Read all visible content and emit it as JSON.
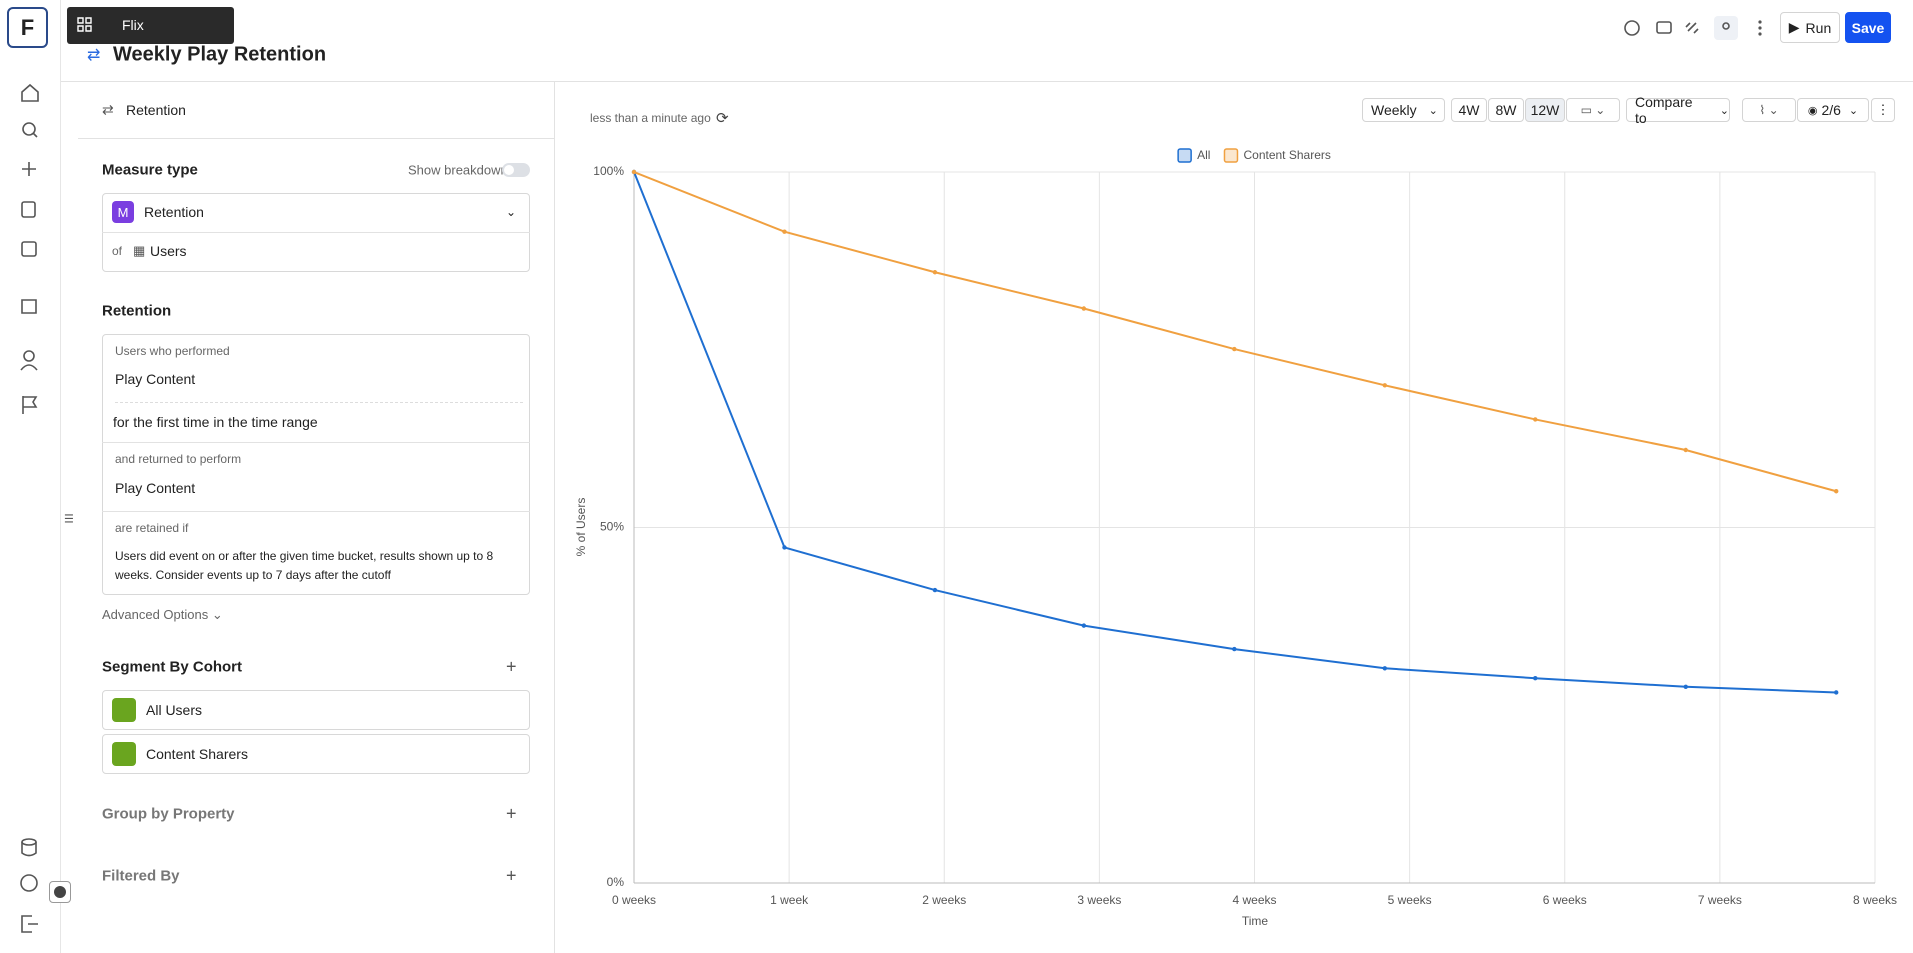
{
  "app": {
    "logo": "F",
    "workspace": "Flix"
  },
  "header": {
    "title": "Weekly Play Retention"
  },
  "toolbar": {
    "run": "Run",
    "save": "Save"
  },
  "panel": {
    "tab": "Retention",
    "measure_type": "Measure type",
    "show_breakdown": "Show breakdown",
    "measure_badge": "M",
    "measure": "Retention",
    "of": "of",
    "entity": "Users",
    "retention_heading": "Retention",
    "users_who_performed": "Users who performed",
    "event1": "Play Content",
    "first_time": "for the first time in the time range",
    "returned": "and returned to perform",
    "event2": "Play Content",
    "retained_if": "are retained if",
    "retained_desc": "Users did event on or after the given time bucket, results shown up to 8 weeks. Consider events up to 7 days after the cutoff",
    "advanced": "Advanced Options",
    "segment_heading": "Segment By Cohort",
    "cohorts": [
      "All Users",
      "Content Sharers"
    ],
    "group_by": "Group by Property",
    "filtered_by": "Filtered By"
  },
  "controls": {
    "updated": "less than a minute ago",
    "interval": "Weekly",
    "ranges": [
      "4W",
      "8W",
      "12W"
    ],
    "compare": "Compare to",
    "visible": "2/6"
  },
  "chart_data": {
    "type": "line",
    "x_label": "Time",
    "y_label": "% of Users",
    "x": [
      0,
      0.97,
      1.94,
      2.9,
      3.87,
      4.84,
      5.81,
      6.78,
      7.75
    ],
    "series": [
      {
        "name": "All",
        "color": "#1f6fd1",
        "values": [
          100,
          47.2,
          41.2,
          36.2,
          32.9,
          30.2,
          28.8,
          27.6,
          26.8
        ]
      },
      {
        "name": "Content Sharers",
        "color": "#f0a040",
        "values": [
          100,
          91.6,
          85.9,
          80.8,
          75.1,
          70.0,
          65.2,
          60.9,
          55.1
        ]
      }
    ],
    "xlim": [
      0,
      8
    ],
    "xticks": [
      {
        "value": 0,
        "label": "0 weeks"
      },
      {
        "value": 1,
        "label": "1 week"
      },
      {
        "value": 2,
        "label": "2 weeks"
      },
      {
        "value": 3,
        "label": "3 weeks"
      },
      {
        "value": 4,
        "label": "4 weeks"
      },
      {
        "value": 5,
        "label": "5 weeks"
      },
      {
        "value": 6,
        "label": "6 weeks"
      },
      {
        "value": 7,
        "label": "7 weeks"
      },
      {
        "value": 8,
        "label": "8 weeks"
      }
    ],
    "ylim": [
      0,
      100
    ],
    "yticks": [
      {
        "value": 0,
        "label": "0%"
      },
      {
        "value": 50,
        "label": "50%"
      },
      {
        "value": 100,
        "label": "100%"
      }
    ],
    "grid": true,
    "legend": "top"
  }
}
